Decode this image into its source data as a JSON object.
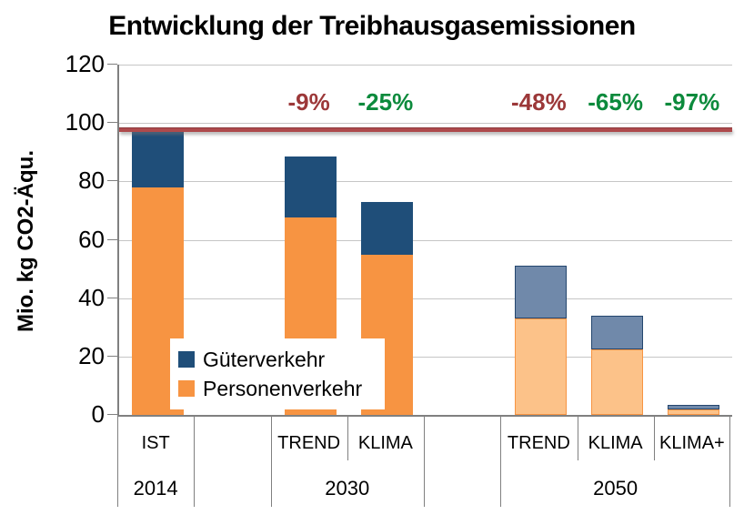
{
  "chart_data": {
    "type": "stacked-bar",
    "title": "Entwicklung der Treibhausgasemissionen",
    "ylabel": "Mio. kg CO2-Äqu.",
    "ylim": [
      0,
      120
    ],
    "yticks": [
      0,
      20,
      40,
      60,
      80,
      100,
      120
    ],
    "grid": true,
    "n_slots": 8,
    "unit": "Mio. kg CO2-Äqu.",
    "series_names": [
      "Güterverkehr",
      "Personenverkehr"
    ],
    "bars": [
      {
        "label": "IST",
        "group": "2014",
        "slot": 0,
        "gueterverkehr": 19.0,
        "personenverkehr": 78.0,
        "muted": false
      },
      {
        "label": "TREND",
        "group": "2030",
        "slot": 2,
        "gueterverkehr": 21.0,
        "personenverkehr": 67.5,
        "muted": false
      },
      {
        "label": "KLIMA",
        "group": "2030",
        "slot": 3,
        "gueterverkehr": 18.0,
        "personenverkehr": 55.0,
        "muted": false
      },
      {
        "label": "TREND",
        "group": "2050",
        "slot": 5,
        "gueterverkehr": 18.0,
        "personenverkehr": 33.0,
        "muted": true
      },
      {
        "label": "KLIMA",
        "group": "2050",
        "slot": 6,
        "gueterverkehr": 11.5,
        "personenverkehr": 22.5,
        "muted": true
      },
      {
        "label": "KLIMA+",
        "group": "2050",
        "slot": 7,
        "gueterverkehr": 1.3,
        "personenverkehr": 2.0,
        "muted": true
      }
    ],
    "group_spans": [
      {
        "label": "2014",
        "from": 0,
        "to": 0
      },
      {
        "label": "2030",
        "from": 2,
        "to": 3
      },
      {
        "label": "2050",
        "from": 5,
        "to": 7
      }
    ],
    "annotations": [
      {
        "text": "-9%",
        "slot": 2,
        "color": "#9c3839"
      },
      {
        "text": "-25%",
        "slot": 3,
        "color": "#0c8a3c"
      },
      {
        "text": "-48%",
        "slot": 5,
        "color": "#9c3839"
      },
      {
        "text": "-65%",
        "slot": 6,
        "color": "#0c8a3c"
      },
      {
        "text": "-97%",
        "slot": 7,
        "color": "#0c8a3c"
      }
    ],
    "reference_line": {
      "value": 98,
      "color": "#ae4a4c"
    },
    "legend": [
      {
        "label": "Güterverkehr",
        "color_key": "gueterverkehr"
      },
      {
        "label": "Personenverkehr",
        "color_key": "personenverkehr"
      }
    ],
    "colors": {
      "gueterverkehr": "#1f4e79",
      "personenverkehr": "#f79442",
      "gueterverkehr_muted": "#7089aa",
      "personenverkehr_muted": "#fcc289",
      "refline": "#ae4a4c",
      "grid": "#c6c6c6",
      "axis": "#808080",
      "annotation_red": "#9c3839",
      "annotation_green": "#0c8a3c",
      "text": "#000000"
    },
    "legend_position": "inside-bottom-left"
  }
}
